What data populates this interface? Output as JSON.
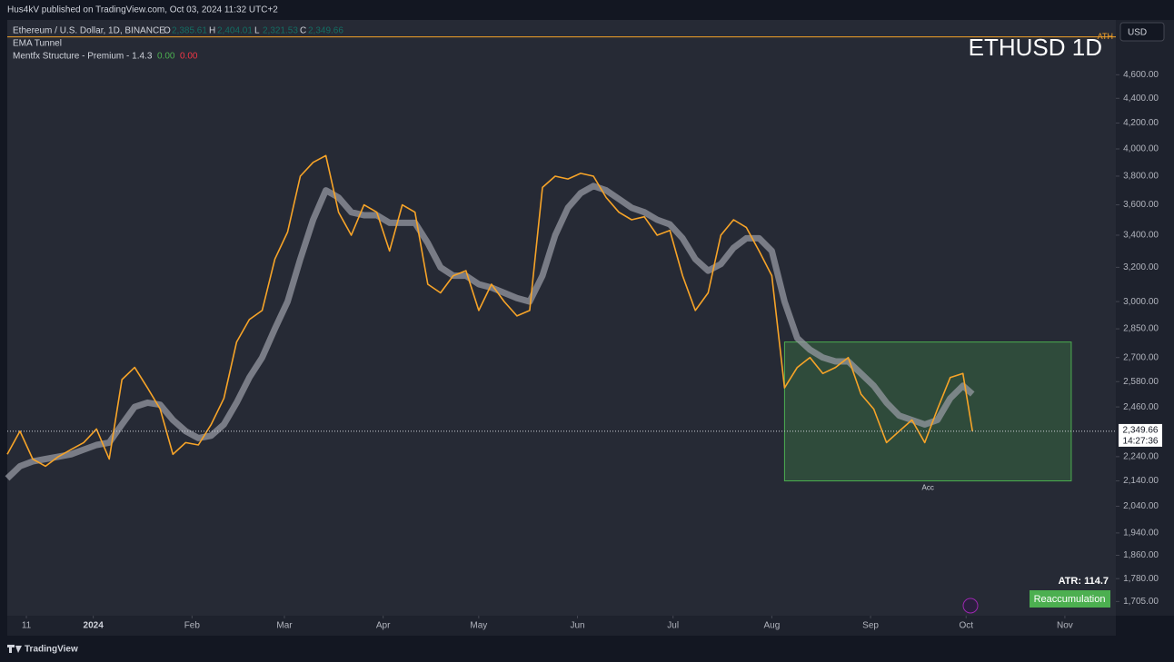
{
  "header": {
    "publisher": "Hus4kV published on TradingView.com, Oct 03, 2024 11:32 UTC+2",
    "brand": "TradingView"
  },
  "chart_data": {
    "type": "line",
    "symbol_title": "ETHUSD 1D",
    "legend_title": "Ethereum / U.S. Dollar, 1D, BINANCE",
    "ohlc": [
      {
        "key": "O",
        "value": "2,385.61"
      },
      {
        "key": "H",
        "value": "2,404.01"
      },
      {
        "key": "L",
        "value": "2,321.53"
      },
      {
        "key": "C",
        "value": "2,349.66"
      }
    ],
    "indicators": [
      {
        "name": "EMA Tunnel"
      },
      {
        "name": "Mentfx Structure - Premium - 1.4.3",
        "values": [
          "0.00",
          "0.00"
        ]
      }
    ],
    "currency": "USD",
    "log_scale": true,
    "x": [
      "2023-12-05",
      "2023-12-09",
      "2023-12-13",
      "2023-12-17",
      "2023-12-21",
      "2023-12-25",
      "2023-12-29",
      "2024-01-02",
      "2024-01-06",
      "2024-01-10",
      "2024-01-14",
      "2024-01-18",
      "2024-01-22",
      "2024-01-26",
      "2024-01-30",
      "2024-02-03",
      "2024-02-07",
      "2024-02-11",
      "2024-02-15",
      "2024-02-19",
      "2024-02-23",
      "2024-02-27",
      "2024-03-02",
      "2024-03-06",
      "2024-03-10",
      "2024-03-14",
      "2024-03-18",
      "2024-03-22",
      "2024-03-26",
      "2024-03-30",
      "2024-04-03",
      "2024-04-07",
      "2024-04-11",
      "2024-04-15",
      "2024-04-19",
      "2024-04-23",
      "2024-04-27",
      "2024-05-01",
      "2024-05-05",
      "2024-05-09",
      "2024-05-13",
      "2024-05-17",
      "2024-05-21",
      "2024-05-25",
      "2024-05-29",
      "2024-06-02",
      "2024-06-06",
      "2024-06-10",
      "2024-06-14",
      "2024-06-18",
      "2024-06-22",
      "2024-06-26",
      "2024-06-30",
      "2024-07-04",
      "2024-07-08",
      "2024-07-12",
      "2024-07-16",
      "2024-07-20",
      "2024-07-24",
      "2024-07-28",
      "2024-08-01",
      "2024-08-05",
      "2024-08-09",
      "2024-08-13",
      "2024-08-17",
      "2024-08-21",
      "2024-08-25",
      "2024-08-29",
      "2024-09-02",
      "2024-09-06",
      "2024-09-10",
      "2024-09-14",
      "2024-09-18",
      "2024-09-22",
      "2024-09-26",
      "2024-09-30",
      "2024-10-03"
    ],
    "series": [
      {
        "name": "ETHUSD",
        "color": "#f7a428",
        "width": 1.6,
        "values": [
          2250,
          2350,
          2230,
          2200,
          2240,
          2270,
          2300,
          2360,
          2230,
          2590,
          2650,
          2550,
          2450,
          2250,
          2300,
          2290,
          2380,
          2500,
          2780,
          2900,
          2950,
          3250,
          3420,
          3800,
          3900,
          3950,
          3550,
          3400,
          3600,
          3550,
          3300,
          3600,
          3550,
          3100,
          3050,
          3150,
          3180,
          2950,
          3100,
          3000,
          2920,
          2950,
          3720,
          3800,
          3780,
          3820,
          3800,
          3650,
          3550,
          3500,
          3520,
          3400,
          3430,
          3150,
          2950,
          3050,
          3400,
          3500,
          3450,
          3300,
          3150,
          2550,
          2650,
          2700,
          2620,
          2650,
          2700,
          2520,
          2450,
          2300,
          2350,
          2400,
          2300,
          2450,
          2600,
          2620,
          2349.66
        ]
      },
      {
        "name": "EMA Tunnel",
        "color": "#9598a1",
        "width": 7,
        "values": [
          2150,
          2200,
          2220,
          2230,
          2240,
          2250,
          2270,
          2290,
          2300,
          2380,
          2460,
          2480,
          2470,
          2400,
          2350,
          2320,
          2330,
          2380,
          2480,
          2600,
          2700,
          2850,
          3000,
          3250,
          3500,
          3700,
          3650,
          3550,
          3530,
          3530,
          3480,
          3480,
          3480,
          3350,
          3200,
          3150,
          3150,
          3100,
          3080,
          3050,
          3020,
          3000,
          3150,
          3400,
          3580,
          3680,
          3730,
          3700,
          3640,
          3580,
          3550,
          3500,
          3470,
          3380,
          3250,
          3180,
          3220,
          3320,
          3380,
          3380,
          3300,
          3000,
          2800,
          2740,
          2700,
          2680,
          2680,
          2620,
          2560,
          2480,
          2420,
          2400,
          2380,
          2400,
          2500,
          2560,
          2520
        ]
      }
    ],
    "xlim": [
      "2023-12-05",
      "2024-11-17"
    ],
    "xticks": [
      {
        "value": "2023-12-11",
        "label": "11"
      },
      {
        "value": "2024-01-01",
        "label": "2024"
      },
      {
        "value": "2024-02-01",
        "label": "Feb"
      },
      {
        "value": "2024-03-01",
        "label": "Mar"
      },
      {
        "value": "2024-04-01",
        "label": "Apr"
      },
      {
        "value": "2024-05-01",
        "label": "May"
      },
      {
        "value": "2024-06-01",
        "label": "Jun"
      },
      {
        "value": "2024-07-01",
        "label": "Jul"
      },
      {
        "value": "2024-08-01",
        "label": "Aug"
      },
      {
        "value": "2024-09-01",
        "label": "Sep"
      },
      {
        "value": "2024-10-01",
        "label": "Oct"
      },
      {
        "value": "2024-11-01",
        "label": "Nov"
      }
    ],
    "ylim": [
      1660,
      5100
    ],
    "yticks": [
      {
        "value": 1705,
        "label": "1,705.00"
      },
      {
        "value": 1780,
        "label": "1,780.00"
      },
      {
        "value": 1860,
        "label": "1,860.00"
      },
      {
        "value": 1940,
        "label": "1,940.00"
      },
      {
        "value": 2040,
        "label": "2,040.00"
      },
      {
        "value": 2140,
        "label": "2,140.00"
      },
      {
        "value": 2240,
        "label": "2,240.00"
      },
      {
        "value": 2460,
        "label": "2,460.00"
      },
      {
        "value": 2580,
        "label": "2,580.00"
      },
      {
        "value": 2700,
        "label": "2,700.00"
      },
      {
        "value": 2850,
        "label": "2,850.00"
      },
      {
        "value": 3000,
        "label": "3,000.00"
      },
      {
        "value": 3200,
        "label": "3,200.00"
      },
      {
        "value": 3400,
        "label": "3,400.00"
      },
      {
        "value": 3600,
        "label": "3,600.00"
      },
      {
        "value": 3800,
        "label": "3,800.00"
      },
      {
        "value": 4000,
        "label": "4,000.00"
      },
      {
        "value": 4200,
        "label": "4,200.00"
      },
      {
        "value": 4400,
        "label": "4,400.00"
      },
      {
        "value": 4600,
        "label": "4,600.00"
      }
    ],
    "last_price": {
      "value": 2349.66,
      "label": "2,349.66",
      "countdown": "14:27:36"
    },
    "ath": {
      "value": 4940,
      "label": "ATH"
    },
    "box": {
      "x": [
        "2024-08-05",
        "2024-11-03"
      ],
      "y": [
        2140,
        2780
      ],
      "label": "Acc"
    },
    "atr": "ATR: 114.7",
    "phase": "Reaccumulation"
  }
}
